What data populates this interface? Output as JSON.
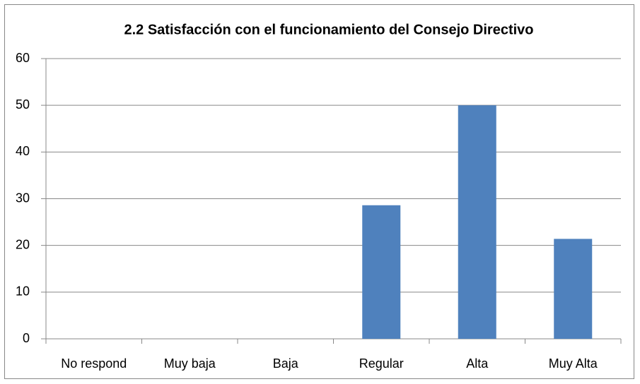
{
  "chart_data": {
    "type": "bar",
    "title": "2.2 Satisfacción con el funcionamiento del Consejo Directivo",
    "categories": [
      "No respond",
      "Muy baja",
      "Baja",
      "Regular",
      "Alta",
      "Muy Alta"
    ],
    "values": [
      0,
      0,
      0,
      28.6,
      50,
      21.4
    ],
    "color": "#4f81bd",
    "ylim": [
      0,
      60
    ],
    "yticks": [
      0,
      10,
      20,
      30,
      40,
      50,
      60
    ],
    "grid": true
  }
}
